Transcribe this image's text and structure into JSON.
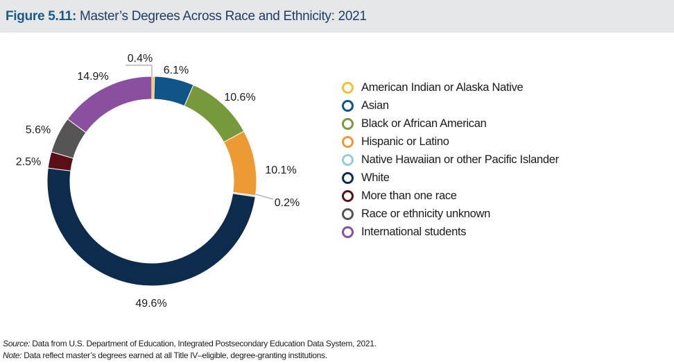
{
  "header": {
    "figure_number": "Figure 5.11:",
    "title": "Master’s Degrees Across Race and Ethnicity: 2021"
  },
  "chart_data": {
    "type": "pie",
    "variant": "donut",
    "title": "Master’s Degrees Across Race and Ethnicity: 2021",
    "unit": "percent",
    "slices": [
      {
        "name": "American Indian or Alaska Native",
        "value": 0.4,
        "label": "0.4%",
        "color": "#f2c12e"
      },
      {
        "name": "Asian",
        "value": 6.1,
        "label": "6.1%",
        "color": "#0f5587"
      },
      {
        "name": "Black or African American",
        "value": 10.6,
        "label": "10.6%",
        "color": "#77983b"
      },
      {
        "name": "Hispanic or Latino",
        "value": 10.1,
        "label": "10.1%",
        "color": "#ed9a34"
      },
      {
        "name": "Native Hawaiian or other Pacific Islander",
        "value": 0.2,
        "label": "0.2%",
        "color": "#9cc6e6"
      },
      {
        "name": "White",
        "value": 49.6,
        "label": "49.6%",
        "color": "#0d2b4d"
      },
      {
        "name": "More than one race",
        "value": 2.5,
        "label": "2.5%",
        "color": "#5a0f17"
      },
      {
        "name": "Race or ethnicity unknown",
        "value": 5.6,
        "label": "5.6%",
        "color": "#555555"
      },
      {
        "name": "International students",
        "value": 14.9,
        "label": "14.9%",
        "color": "#8a4f9e"
      }
    ],
    "legend_position": "right"
  },
  "footer": {
    "source_label": "Source:",
    "source_text": " Data from U.S. Department of Education, Integrated Postsecondary Education Data System, 2021.",
    "note_label": "Note:",
    "note_text": " Data reflect master’s degrees earned at all Title IV–eligible, degree-granting institutions."
  }
}
